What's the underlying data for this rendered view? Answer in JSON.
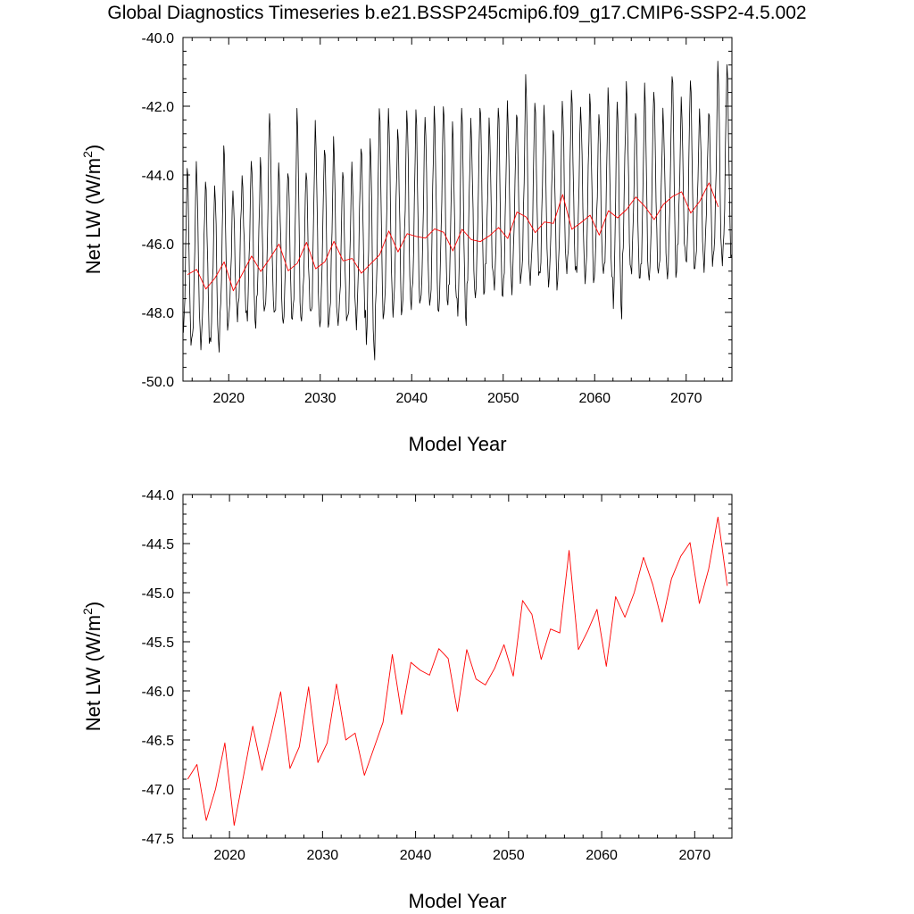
{
  "figure": {
    "title": "Global Diagnostics Timeseries b.e21.BSSP245cmip6.f09_g17.CMIP6-SSP2-4.5.002"
  },
  "colors": {
    "monthly": "#000000",
    "annual": "#ff0000",
    "axes": "#000000"
  },
  "chart_data": [
    {
      "type": "line",
      "panel": "top",
      "title": "",
      "xlabel": "Model Year",
      "ylabel": "Net LW (W/m",
      "ylabel_sup": "2",
      "ylabel_close": ")",
      "xlim": [
        2015,
        2075
      ],
      "ylim": [
        -50.0,
        -40.0
      ],
      "xticks": [
        2020,
        2030,
        2040,
        2050,
        2060,
        2070
      ],
      "yticks": [
        -50.0,
        -48.0,
        -46.0,
        -44.0,
        -42.0,
        -40.0
      ],
      "ytick_labels": [
        "-50.0",
        "-48.0",
        "-46.0",
        "-44.0",
        "-42.0",
        "-40.0"
      ],
      "series": [
        {
          "name": "monthly",
          "color": "#000000",
          "start_year": 2015,
          "monthly_cycle": [
            -48.3,
            -48.0,
            -47.3,
            -46.4,
            -45.0,
            -43.7,
            -44.2,
            -45.6,
            -47.0,
            -47.9,
            -48.4,
            -48.5
          ],
          "trend_per_year": 0.042,
          "peaks": [
            -43.8,
            -43.7,
            -44.1,
            -44.3,
            -43.2,
            -44.5,
            -44.0,
            -43.5,
            -43.6,
            -42.2,
            -43.7,
            -43.8,
            -42.2,
            -43.9,
            -42.5,
            -43.1,
            -43.0,
            -43.9,
            -43.7,
            -43.1,
            -43.0,
            -42.1,
            -42.1,
            -42.6,
            -42.1,
            -42.2,
            -42.3,
            -42.0,
            -41.9,
            -42.6,
            -42.0,
            -42.4,
            -41.9,
            -42.5,
            -42.0,
            -41.9,
            -42.1,
            -41.2,
            -41.9,
            -42.0,
            -42.6,
            -41.9,
            -41.6,
            -42.0,
            -41.6,
            -42.2,
            -41.6,
            -41.8,
            -41.3,
            -42.1,
            -41.5,
            -41.5,
            -42.1,
            -41.0,
            -41.9,
            -41.2,
            -42.1,
            -42.1,
            -40.8
          ],
          "troughs": [
            -49.0,
            -48.9,
            -48.8,
            -49.0,
            -48.6,
            -48.1,
            -48.0,
            -48.3,
            -48.1,
            -47.9,
            -48.3,
            -48.1,
            -48.4,
            -48.0,
            -48.3,
            -48.3,
            -48.4,
            -48.3,
            -48.3,
            -48.0,
            -49.3,
            -48.3,
            -47.9,
            -48.0,
            -47.8,
            -47.9,
            -47.6,
            -48.0,
            -47.7,
            -47.8,
            -48.3,
            -47.5,
            -47.4,
            -47.1,
            -47.6,
            -47.3,
            -47.0,
            -47.2,
            -47.0,
            -47.0,
            -47.2,
            -46.8,
            -46.9,
            -46.9,
            -47.1,
            -46.8,
            -47.2,
            -48.0,
            -46.7,
            -47.0,
            -47.2,
            -46.8,
            -46.9,
            -46.9,
            -46.5,
            -46.8,
            -46.6,
            -46.5,
            -46.6,
            -46.5
          ]
        },
        {
          "name": "annual",
          "color": "#ff0000",
          "x": [
            2015.5,
            2016.5,
            2017.5,
            2018.5,
            2019.5,
            2020.5,
            2021.5,
            2022.5,
            2023.5,
            2024.5,
            2025.5,
            2026.5,
            2027.5,
            2028.5,
            2029.5,
            2030.5,
            2031.5,
            2032.5,
            2033.5,
            2034.5,
            2035.5,
            2036.5,
            2037.5,
            2038.5,
            2039.5,
            2040.5,
            2041.5,
            2042.5,
            2043.5,
            2044.5,
            2045.5,
            2046.5,
            2047.5,
            2048.5,
            2049.5,
            2050.5,
            2051.5,
            2052.5,
            2053.5,
            2054.5,
            2055.5,
            2056.5,
            2057.5,
            2058.5,
            2059.5,
            2060.5,
            2061.5,
            2062.5,
            2063.5,
            2064.5,
            2065.5,
            2066.5,
            2067.5,
            2068.5,
            2069.5,
            2070.5,
            2071.5,
            2072.5,
            2073.5
          ],
          "y": [
            -46.9,
            -46.75,
            -47.32,
            -47.0,
            -46.53,
            -47.37,
            -46.87,
            -46.36,
            -46.81,
            -46.43,
            -46.01,
            -46.79,
            -46.57,
            -45.96,
            -46.73,
            -46.53,
            -45.93,
            -46.5,
            -46.43,
            -46.86,
            -46.59,
            -46.32,
            -45.63,
            -46.24,
            -45.71,
            -45.79,
            -45.84,
            -45.57,
            -45.67,
            -46.21,
            -45.58,
            -45.88,
            -45.94,
            -45.77,
            -45.53,
            -45.85,
            -45.08,
            -45.22,
            -45.68,
            -45.37,
            -45.41,
            -44.57,
            -45.58,
            -45.39,
            -45.17,
            -45.75,
            -45.04,
            -45.25,
            -45.0,
            -44.64,
            -44.92,
            -45.3,
            -44.86,
            -44.63,
            -44.49,
            -45.11,
            -44.76,
            -44.23,
            -44.93
          ]
        }
      ]
    },
    {
      "type": "line",
      "panel": "bottom",
      "title": "",
      "xlabel": "Model Year",
      "ylabel": "Net LW (W/m",
      "ylabel_sup": "2",
      "ylabel_close": ")",
      "xlim": [
        2015,
        2074
      ],
      "ylim": [
        -47.5,
        -44.0
      ],
      "xticks": [
        2020,
        2030,
        2040,
        2050,
        2060,
        2070
      ],
      "yticks": [
        -47.5,
        -47.0,
        -46.5,
        -46.0,
        -45.5,
        -45.0,
        -44.5,
        -44.0
      ],
      "ytick_labels": [
        "-47.5",
        "-47.0",
        "-46.5",
        "-46.0",
        "-45.5",
        "-45.0",
        "-44.5",
        "-44.0"
      ],
      "series": [
        {
          "name": "annual",
          "color": "#ff0000",
          "x": [
            2015.5,
            2016.5,
            2017.5,
            2018.5,
            2019.5,
            2020.5,
            2021.5,
            2022.5,
            2023.5,
            2024.5,
            2025.5,
            2026.5,
            2027.5,
            2028.5,
            2029.5,
            2030.5,
            2031.5,
            2032.5,
            2033.5,
            2034.5,
            2035.5,
            2036.5,
            2037.5,
            2038.5,
            2039.5,
            2040.5,
            2041.5,
            2042.5,
            2043.5,
            2044.5,
            2045.5,
            2046.5,
            2047.5,
            2048.5,
            2049.5,
            2050.5,
            2051.5,
            2052.5,
            2053.5,
            2054.5,
            2055.5,
            2056.5,
            2057.5,
            2058.5,
            2059.5,
            2060.5,
            2061.5,
            2062.5,
            2063.5,
            2064.5,
            2065.5,
            2066.5,
            2067.5,
            2068.5,
            2069.5,
            2070.5,
            2071.5,
            2072.5,
            2073.5
          ],
          "y": [
            -46.9,
            -46.75,
            -47.32,
            -47.0,
            -46.53,
            -47.37,
            -46.87,
            -46.36,
            -46.81,
            -46.43,
            -46.01,
            -46.79,
            -46.57,
            -45.96,
            -46.73,
            -46.53,
            -45.93,
            -46.5,
            -46.43,
            -46.86,
            -46.59,
            -46.32,
            -45.63,
            -46.24,
            -45.71,
            -45.79,
            -45.84,
            -45.57,
            -45.67,
            -46.21,
            -45.58,
            -45.88,
            -45.94,
            -45.77,
            -45.53,
            -45.85,
            -45.08,
            -45.22,
            -45.68,
            -45.37,
            -45.41,
            -44.57,
            -45.58,
            -45.39,
            -45.17,
            -45.75,
            -45.04,
            -45.25,
            -45.0,
            -44.64,
            -44.92,
            -45.3,
            -44.86,
            -44.63,
            -44.49,
            -45.11,
            -44.76,
            -44.23,
            -44.93
          ]
        }
      ]
    }
  ]
}
